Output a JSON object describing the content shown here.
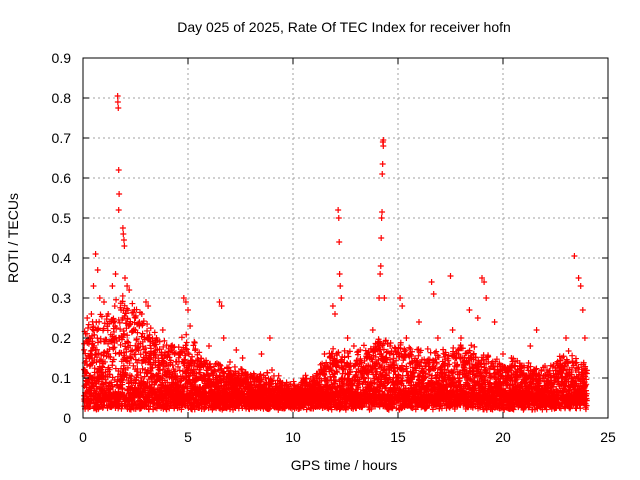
{
  "chart_data": {
    "type": "scatter",
    "title": "Day 025 of 2025, Rate Of TEC Index for receiver hofn",
    "xlabel": "GPS time / hours",
    "ylabel": "ROTI / TECUs",
    "xlim": [
      0,
      25
    ],
    "ylim": [
      0,
      0.9
    ],
    "xticks": [
      0,
      5,
      10,
      15,
      20,
      25
    ],
    "yticks": [
      0,
      0.1,
      0.2,
      0.3,
      0.4,
      0.5,
      0.6,
      0.7,
      0.8,
      0.9
    ],
    "grid": true,
    "marker": "+",
    "color": "#ff0000",
    "series": [
      {
        "name": "ROTI",
        "points": [
          [
            0.2,
            0.25
          ],
          [
            0.3,
            0.2
          ],
          [
            0.4,
            0.26
          ],
          [
            0.5,
            0.33
          ],
          [
            0.6,
            0.41
          ],
          [
            0.7,
            0.37
          ],
          [
            0.8,
            0.3
          ],
          [
            1.0,
            0.29
          ],
          [
            1.2,
            0.26
          ],
          [
            1.4,
            0.33
          ],
          [
            1.55,
            0.36
          ],
          [
            1.65,
            0.805
          ],
          [
            1.66,
            0.79
          ],
          [
            1.68,
            0.775
          ],
          [
            1.7,
            0.62
          ],
          [
            1.72,
            0.56
          ],
          [
            1.7,
            0.52
          ],
          [
            1.9,
            0.475
          ],
          [
            1.92,
            0.46
          ],
          [
            1.95,
            0.445
          ],
          [
            1.97,
            0.43
          ],
          [
            2.0,
            0.35
          ],
          [
            2.1,
            0.33
          ],
          [
            2.2,
            0.32
          ],
          [
            2.5,
            0.25
          ],
          [
            2.8,
            0.26
          ],
          [
            3.0,
            0.29
          ],
          [
            3.1,
            0.28
          ],
          [
            3.5,
            0.2
          ],
          [
            3.8,
            0.22
          ],
          [
            4.2,
            0.18
          ],
          [
            4.8,
            0.3
          ],
          [
            4.9,
            0.29
          ],
          [
            5.0,
            0.27
          ],
          [
            5.1,
            0.23
          ],
          [
            5.3,
            0.19
          ],
          [
            6.0,
            0.18
          ],
          [
            6.5,
            0.29
          ],
          [
            6.6,
            0.28
          ],
          [
            6.7,
            0.2
          ],
          [
            7.0,
            0.14
          ],
          [
            7.3,
            0.17
          ],
          [
            7.6,
            0.15
          ],
          [
            8.5,
            0.16
          ],
          [
            8.9,
            0.2
          ],
          [
            9.0,
            0.12
          ],
          [
            9.5,
            0.08
          ],
          [
            11.5,
            0.16
          ],
          [
            11.9,
            0.28
          ],
          [
            12.0,
            0.26
          ],
          [
            12.15,
            0.52
          ],
          [
            12.18,
            0.5
          ],
          [
            12.2,
            0.44
          ],
          [
            12.22,
            0.36
          ],
          [
            12.25,
            0.33
          ],
          [
            12.3,
            0.3
          ],
          [
            12.6,
            0.2
          ],
          [
            12.9,
            0.18
          ],
          [
            13.2,
            0.17
          ],
          [
            13.5,
            0.15
          ],
          [
            13.8,
            0.22
          ],
          [
            14.1,
            0.3
          ],
          [
            14.15,
            0.36
          ],
          [
            14.18,
            0.38
          ],
          [
            14.2,
            0.45
          ],
          [
            14.22,
            0.5
          ],
          [
            14.24,
            0.515
          ],
          [
            14.25,
            0.61
          ],
          [
            14.27,
            0.635
          ],
          [
            14.28,
            0.69
          ],
          [
            14.3,
            0.695
          ],
          [
            14.3,
            0.68
          ],
          [
            14.35,
            0.3
          ],
          [
            15.1,
            0.3
          ],
          [
            15.2,
            0.28
          ],
          [
            15.4,
            0.2
          ],
          [
            16.0,
            0.24
          ],
          [
            16.6,
            0.34
          ],
          [
            16.7,
            0.31
          ],
          [
            16.9,
            0.2
          ],
          [
            17.5,
            0.355
          ],
          [
            17.6,
            0.22
          ],
          [
            18.0,
            0.2
          ],
          [
            18.4,
            0.27
          ],
          [
            18.8,
            0.25
          ],
          [
            19.0,
            0.35
          ],
          [
            19.1,
            0.34
          ],
          [
            19.2,
            0.3
          ],
          [
            19.6,
            0.24
          ],
          [
            20.0,
            0.16
          ],
          [
            20.4,
            0.15
          ],
          [
            20.8,
            0.13
          ],
          [
            21.3,
            0.18
          ],
          [
            21.6,
            0.22
          ],
          [
            22.0,
            0.13
          ],
          [
            23.0,
            0.2
          ],
          [
            23.4,
            0.405
          ],
          [
            23.6,
            0.35
          ],
          [
            23.7,
            0.33
          ],
          [
            23.8,
            0.27
          ],
          [
            23.9,
            0.2
          ]
        ],
        "background_band": {
          "description": "dense cloud of ROTI samples across all hours",
          "baseline_range": [
            0.02,
            0.08
          ],
          "envelope": [
            [
              0,
              0.2
            ],
            [
              1,
              0.24
            ],
            [
              2,
              0.28
            ],
            [
              3,
              0.22
            ],
            [
              4,
              0.15
            ],
            [
              5,
              0.18
            ],
            [
              6,
              0.12
            ],
            [
              7,
              0.1
            ],
            [
              8,
              0.09
            ],
            [
              9,
              0.08
            ],
            [
              10,
              0.06
            ],
            [
              11,
              0.09
            ],
            [
              12,
              0.15
            ],
            [
              13,
              0.14
            ],
            [
              14,
              0.18
            ],
            [
              15,
              0.16
            ],
            [
              16,
              0.15
            ],
            [
              17,
              0.14
            ],
            [
              18,
              0.16
            ],
            [
              19,
              0.15
            ],
            [
              20,
              0.12
            ],
            [
              21,
              0.11
            ],
            [
              22,
              0.1
            ],
            [
              23,
              0.14
            ],
            [
              24,
              0.12
            ]
          ]
        }
      }
    ]
  }
}
